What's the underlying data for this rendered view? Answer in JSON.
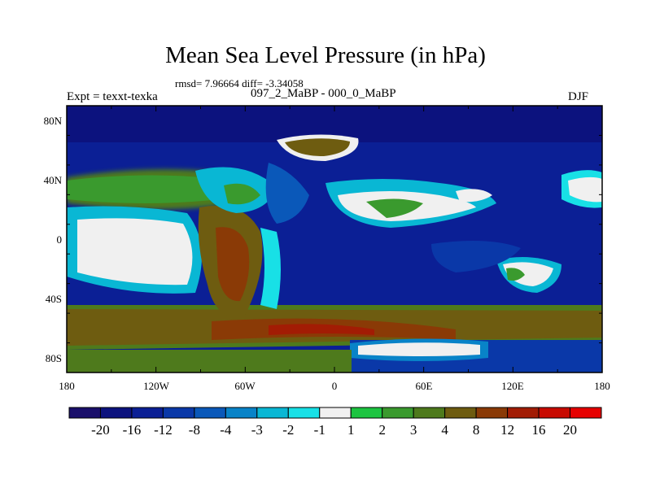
{
  "title": "Mean Sea Level Pressure (in hPa)",
  "stats": "rmsd= 7.96664 diff= -3.34058",
  "left_label": "Expt = texxt-texka",
  "center_label": "097_2_MaBP - 000_0_MaBP",
  "right_label": "DJF",
  "lat_ticks": [
    "80N",
    "40N",
    "0",
    "40S",
    "80S"
  ],
  "lon_ticks": [
    "180",
    "120W",
    "60W",
    "0",
    "60E",
    "120E",
    "180"
  ],
  "colorbar": {
    "labels": [
      "-20",
      "-16",
      "-12",
      "-8",
      "-4",
      "-3",
      "-2",
      "-1",
      "1",
      "2",
      "3",
      "4",
      "8",
      "12",
      "16",
      "20"
    ],
    "colors": [
      "#1a0f6b",
      "#0c127e",
      "#0b1f95",
      "#0a38a8",
      "#0a58b9",
      "#0883c8",
      "#09b7d4",
      "#18e0e6",
      "#f0f0f0",
      "#1dc441",
      "#3a9a2e",
      "#4e7a1c",
      "#6e5c10",
      "#8a3a06",
      "#a21c04",
      "#c80a00",
      "#e60000"
    ]
  }
}
